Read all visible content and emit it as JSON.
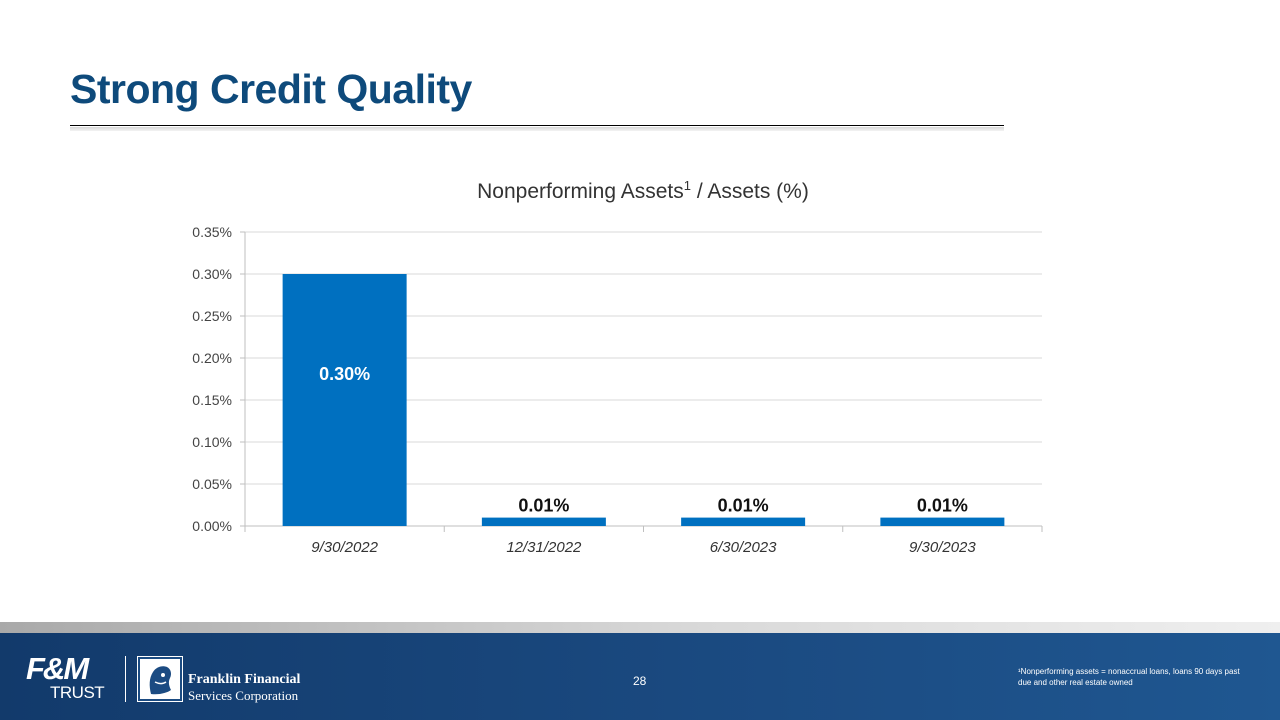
{
  "page": {
    "title": "Strong Credit Quality",
    "page_number": "28",
    "footnote": "¹Nonperforming assets = nonaccrual loans, loans 90 days past due and other real estate owned"
  },
  "logos": {
    "fm": {
      "mark": "F&M",
      "sub": "TRUST"
    },
    "ffsc": {
      "line1": "Franklin Financial",
      "line2": "Services Corporation"
    }
  },
  "colors": {
    "title": "#0e4a7b",
    "bar": "#0070c0",
    "footer": "#1b4b82"
  },
  "chart_data": {
    "type": "bar",
    "title_main": "Nonperforming Assets",
    "title_sup": "1",
    "title_rest": " / Assets (%)",
    "categories": [
      "9/30/2022",
      "12/31/2022",
      "6/30/2023",
      "9/30/2023"
    ],
    "values": [
      0.3,
      0.01,
      0.01,
      0.01
    ],
    "data_labels": [
      "0.30%",
      "0.01%",
      "0.01%",
      "0.01%"
    ],
    "ylim": [
      0,
      0.35
    ],
    "yticks": [
      0.0,
      0.05,
      0.1,
      0.15,
      0.2,
      0.25,
      0.3,
      0.35
    ],
    "ytick_labels": [
      "0.00%",
      "0.05%",
      "0.10%",
      "0.15%",
      "0.20%",
      "0.25%",
      "0.30%",
      "0.35%"
    ],
    "grid": true,
    "legend": "none"
  }
}
